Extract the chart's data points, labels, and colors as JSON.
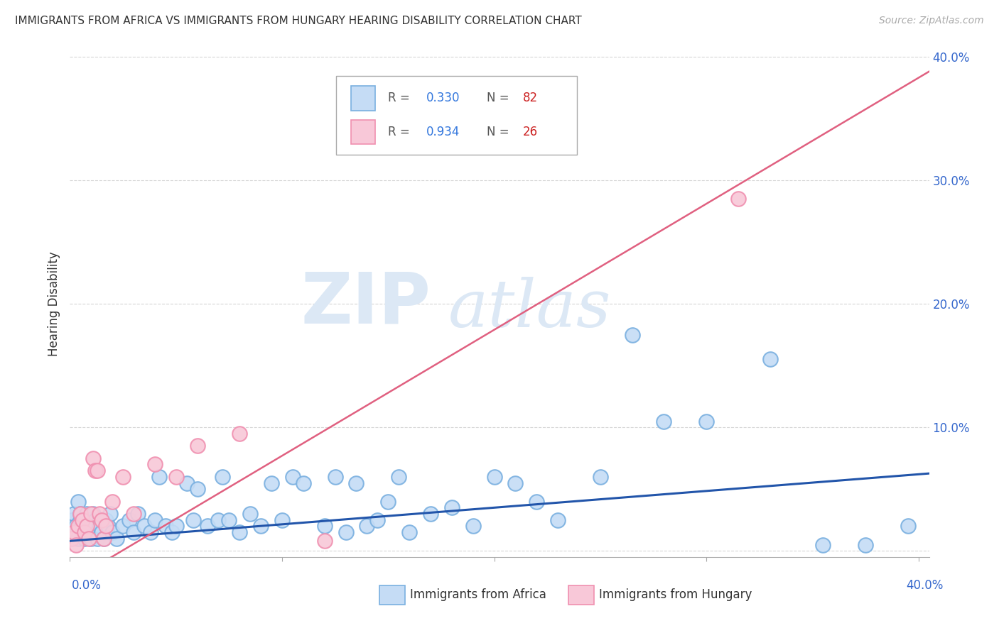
{
  "title": "IMMIGRANTS FROM AFRICA VS IMMIGRANTS FROM HUNGARY HEARING DISABILITY CORRELATION CHART",
  "source": "Source: ZipAtlas.com",
  "ylabel": "Hearing Disability",
  "xlim": [
    0.0,
    0.405
  ],
  "ylim": [
    -0.005,
    0.405
  ],
  "africa_color": "#c5dcf5",
  "africa_edge_color": "#7ab0e0",
  "hungary_color": "#f8c8d8",
  "hungary_edge_color": "#f090b0",
  "africa_line_color": "#2255aa",
  "hungary_line_color": "#e06080",
  "r_color": "#3377dd",
  "n_color": "#cc2222",
  "watermark_color": "#dce8f5",
  "africa_slope": 0.135,
  "africa_intercept": 0.008,
  "hungary_slope": 1.02,
  "hungary_intercept": -0.025,
  "africa_x": [
    0.001,
    0.002,
    0.003,
    0.003,
    0.004,
    0.004,
    0.005,
    0.005,
    0.006,
    0.006,
    0.007,
    0.007,
    0.008,
    0.008,
    0.009,
    0.009,
    0.01,
    0.01,
    0.011,
    0.011,
    0.012,
    0.012,
    0.013,
    0.013,
    0.014,
    0.014,
    0.015,
    0.016,
    0.017,
    0.018,
    0.019,
    0.02,
    0.022,
    0.025,
    0.028,
    0.03,
    0.032,
    0.035,
    0.038,
    0.04,
    0.042,
    0.045,
    0.048,
    0.05,
    0.055,
    0.058,
    0.06,
    0.065,
    0.07,
    0.072,
    0.075,
    0.08,
    0.085,
    0.09,
    0.095,
    0.1,
    0.105,
    0.11,
    0.12,
    0.125,
    0.13,
    0.135,
    0.14,
    0.145,
    0.15,
    0.155,
    0.16,
    0.17,
    0.18,
    0.19,
    0.2,
    0.21,
    0.22,
    0.23,
    0.25,
    0.265,
    0.28,
    0.3,
    0.33,
    0.355,
    0.375,
    0.395
  ],
  "africa_y": [
    0.025,
    0.03,
    0.02,
    0.015,
    0.04,
    0.01,
    0.025,
    0.03,
    0.015,
    0.02,
    0.025,
    0.01,
    0.015,
    0.03,
    0.02,
    0.025,
    0.01,
    0.015,
    0.02,
    0.03,
    0.025,
    0.02,
    0.015,
    0.01,
    0.025,
    0.02,
    0.015,
    0.01,
    0.025,
    0.02,
    0.03,
    0.015,
    0.01,
    0.02,
    0.025,
    0.015,
    0.03,
    0.02,
    0.015,
    0.025,
    0.06,
    0.02,
    0.015,
    0.02,
    0.055,
    0.025,
    0.05,
    0.02,
    0.025,
    0.06,
    0.025,
    0.015,
    0.03,
    0.02,
    0.055,
    0.025,
    0.06,
    0.055,
    0.02,
    0.06,
    0.015,
    0.055,
    0.02,
    0.025,
    0.04,
    0.06,
    0.015,
    0.03,
    0.035,
    0.02,
    0.06,
    0.055,
    0.04,
    0.025,
    0.06,
    0.175,
    0.105,
    0.105,
    0.155,
    0.005,
    0.005,
    0.02
  ],
  "hungary_x": [
    0.001,
    0.002,
    0.003,
    0.004,
    0.005,
    0.006,
    0.007,
    0.008,
    0.009,
    0.01,
    0.011,
    0.012,
    0.013,
    0.014,
    0.015,
    0.016,
    0.017,
    0.02,
    0.025,
    0.03,
    0.04,
    0.05,
    0.06,
    0.08,
    0.12,
    0.315
  ],
  "hungary_y": [
    0.01,
    0.015,
    0.005,
    0.02,
    0.03,
    0.025,
    0.015,
    0.02,
    0.01,
    0.03,
    0.075,
    0.065,
    0.065,
    0.03,
    0.025,
    0.01,
    0.02,
    0.04,
    0.06,
    0.03,
    0.07,
    0.06,
    0.085,
    0.095,
    0.008,
    0.285
  ]
}
